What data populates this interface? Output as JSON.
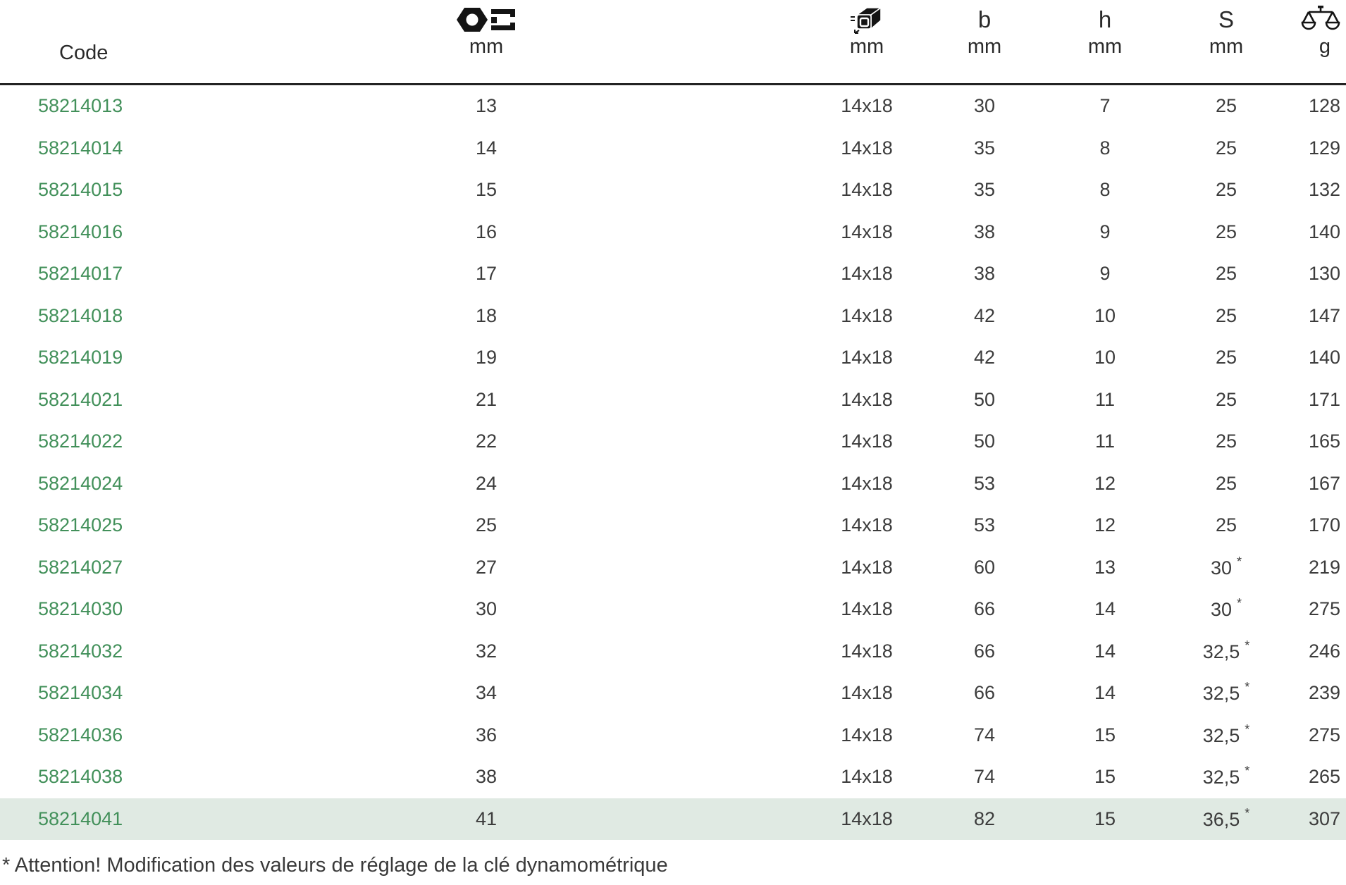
{
  "colors": {
    "code_green": "#42905a",
    "highlight_bg": "#e0eae3",
    "text": "#3c3c3c",
    "header_border": "#232323"
  },
  "table": {
    "columns": [
      {
        "name": "code",
        "label": "Code"
      },
      {
        "name": "opening",
        "icon": "wrench-jaw-opening-icon",
        "unit": "mm"
      },
      {
        "name": "drive",
        "icon": "square-drive-insert-icon",
        "unit": "mm"
      },
      {
        "name": "b",
        "label": "b",
        "unit": "mm"
      },
      {
        "name": "h",
        "label": "h",
        "unit": "mm"
      },
      {
        "name": "s",
        "label": "S",
        "unit": "mm"
      },
      {
        "name": "weight",
        "icon": "weight-scale-icon",
        "unit": "g"
      }
    ],
    "rows": [
      {
        "code": "58214013",
        "opening": "13",
        "drive": "14x18",
        "b": "30",
        "h": "7",
        "s": "25",
        "s_star": false,
        "weight": "128",
        "highlighted": false
      },
      {
        "code": "58214014",
        "opening": "14",
        "drive": "14x18",
        "b": "35",
        "h": "8",
        "s": "25",
        "s_star": false,
        "weight": "129",
        "highlighted": false
      },
      {
        "code": "58214015",
        "opening": "15",
        "drive": "14x18",
        "b": "35",
        "h": "8",
        "s": "25",
        "s_star": false,
        "weight": "132",
        "highlighted": false
      },
      {
        "code": "58214016",
        "opening": "16",
        "drive": "14x18",
        "b": "38",
        "h": "9",
        "s": "25",
        "s_star": false,
        "weight": "140",
        "highlighted": false
      },
      {
        "code": "58214017",
        "opening": "17",
        "drive": "14x18",
        "b": "38",
        "h": "9",
        "s": "25",
        "s_star": false,
        "weight": "130",
        "highlighted": false
      },
      {
        "code": "58214018",
        "opening": "18",
        "drive": "14x18",
        "b": "42",
        "h": "10",
        "s": "25",
        "s_star": false,
        "weight": "147",
        "highlighted": false
      },
      {
        "code": "58214019",
        "opening": "19",
        "drive": "14x18",
        "b": "42",
        "h": "10",
        "s": "25",
        "s_star": false,
        "weight": "140",
        "highlighted": false
      },
      {
        "code": "58214021",
        "opening": "21",
        "drive": "14x18",
        "b": "50",
        "h": "11",
        "s": "25",
        "s_star": false,
        "weight": "171",
        "highlighted": false
      },
      {
        "code": "58214022",
        "opening": "22",
        "drive": "14x18",
        "b": "50",
        "h": "11",
        "s": "25",
        "s_star": false,
        "weight": "165",
        "highlighted": false
      },
      {
        "code": "58214024",
        "opening": "24",
        "drive": "14x18",
        "b": "53",
        "h": "12",
        "s": "25",
        "s_star": false,
        "weight": "167",
        "highlighted": false
      },
      {
        "code": "58214025",
        "opening": "25",
        "drive": "14x18",
        "b": "53",
        "h": "12",
        "s": "25",
        "s_star": false,
        "weight": "170",
        "highlighted": false
      },
      {
        "code": "58214027",
        "opening": "27",
        "drive": "14x18",
        "b": "60",
        "h": "13",
        "s": "30",
        "s_star": true,
        "weight": "219",
        "highlighted": false
      },
      {
        "code": "58214030",
        "opening": "30",
        "drive": "14x18",
        "b": "66",
        "h": "14",
        "s": "30",
        "s_star": true,
        "weight": "275",
        "highlighted": false
      },
      {
        "code": "58214032",
        "opening": "32",
        "drive": "14x18",
        "b": "66",
        "h": "14",
        "s": "32,5",
        "s_star": true,
        "weight": "246",
        "highlighted": false
      },
      {
        "code": "58214034",
        "opening": "34",
        "drive": "14x18",
        "b": "66",
        "h": "14",
        "s": "32,5",
        "s_star": true,
        "weight": "239",
        "highlighted": false
      },
      {
        "code": "58214036",
        "opening": "36",
        "drive": "14x18",
        "b": "74",
        "h": "15",
        "s": "32,5",
        "s_star": true,
        "weight": "275",
        "highlighted": false
      },
      {
        "code": "58214038",
        "opening": "38",
        "drive": "14x18",
        "b": "74",
        "h": "15",
        "s": "32,5",
        "s_star": true,
        "weight": "265",
        "highlighted": false
      },
      {
        "code": "58214041",
        "opening": "41",
        "drive": "14x18",
        "b": "82",
        "h": "15",
        "s": "36,5",
        "s_star": true,
        "weight": "307",
        "highlighted": true
      }
    ]
  },
  "footnote": "* Attention! Modification des valeurs de réglage de la clé dynamométrique"
}
